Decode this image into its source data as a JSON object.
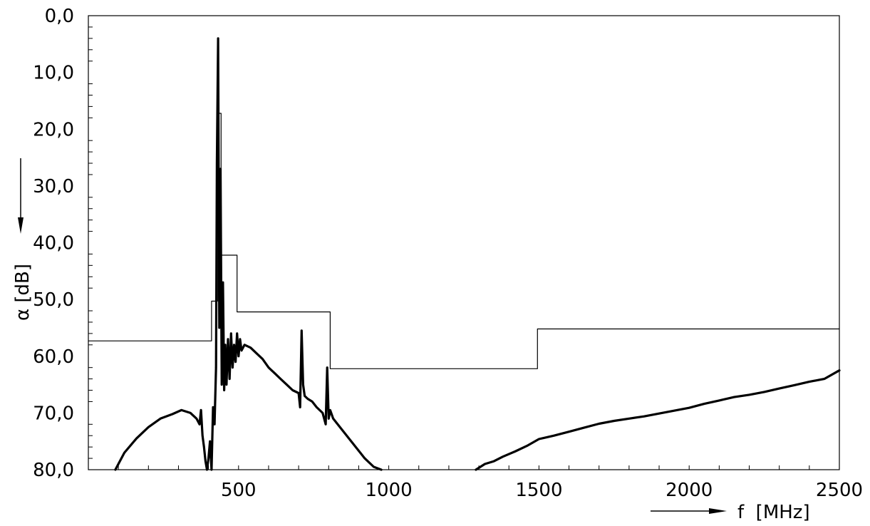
{
  "chart_data": {
    "type": "line",
    "title": "",
    "xlabel": "f  [MHz]",
    "ylabel": "α  [dB]",
    "xlim": [
      0,
      2500
    ],
    "ylim": [
      80,
      0
    ],
    "y_inverted": true,
    "grid": false,
    "x_ticks": [
      500,
      1000,
      1500,
      2000,
      2500
    ],
    "x_tick_labels": [
      "500",
      "1000",
      "1500",
      "2000",
      "2500"
    ],
    "y_ticks": [
      0,
      10,
      20,
      30,
      40,
      50,
      60,
      70,
      80
    ],
    "y_tick_labels": [
      "0,0",
      "10,0",
      "20,0",
      "30,0",
      "40,0",
      "50,0",
      "60,0",
      "70,0",
      "80,0"
    ],
    "colors": {
      "line": "#000000",
      "background": "#ffffff"
    },
    "series": [
      {
        "style": "thin-step",
        "x": [
          0,
          410,
          410,
          430,
          430,
          442,
          442,
          495,
          495,
          805,
          805,
          1495,
          1495,
          2500
        ],
        "y": [
          57.3,
          57.3,
          50.3,
          50.3,
          17.2,
          17.2,
          42.2,
          42.2,
          52.2,
          52.2,
          62.2,
          62.2,
          55.2,
          55.2
        ]
      },
      {
        "style": "thick-noisy",
        "x": [
          90,
          120,
          160,
          200,
          240,
          280,
          310,
          340,
          360,
          370,
          375,
          380,
          385,
          390,
          395,
          400,
          405,
          410,
          415,
          420,
          425,
          428,
          432,
          436,
          440,
          444,
          448,
          452,
          456,
          460,
          465,
          470,
          475,
          480,
          485,
          490,
          495,
          500,
          505,
          510,
          520,
          540,
          560,
          580,
          600,
          620,
          640,
          660,
          680,
          700,
          705,
          710,
          715,
          720,
          730,
          745,
          760,
          780,
          790,
          795,
          800,
          805,
          815,
          830,
          860,
          890,
          920,
          950,
          975
        ],
        "y": [
          80,
          77,
          74.5,
          72.5,
          71,
          70.2,
          69.5,
          70,
          71,
          72,
          69.5,
          74,
          76,
          78.5,
          80,
          78,
          75,
          80,
          69,
          72,
          62,
          26,
          4,
          55,
          27,
          65,
          47,
          66,
          58,
          65,
          57,
          64,
          56,
          62,
          58,
          61,
          56,
          60,
          57,
          59,
          58,
          58.5,
          59.5,
          60.5,
          62,
          63,
          64,
          65,
          66,
          66.5,
          69,
          55.5,
          65,
          67,
          67.5,
          68,
          69,
          70,
          72,
          62,
          71,
          69.5,
          71,
          72,
          74,
          76,
          78,
          79.5,
          80
        ]
      },
      {
        "style": "thick-noisy",
        "x": [
          1290,
          1320,
          1350,
          1380,
          1420,
          1460,
          1500,
          1550,
          1600,
          1650,
          1700,
          1750,
          1800,
          1850,
          1900,
          1950,
          2000,
          2050,
          2100,
          2150,
          2200,
          2250,
          2300,
          2350,
          2400,
          2450,
          2500
        ],
        "y": [
          80,
          79,
          78.5,
          77.7,
          76.8,
          75.8,
          74.6,
          74,
          73.3,
          72.6,
          71.9,
          71.4,
          71,
          70.6,
          70.1,
          69.6,
          69.1,
          68.4,
          67.8,
          67.2,
          66.8,
          66.3,
          65.7,
          65.1,
          64.5,
          64,
          62.5
        ]
      }
    ],
    "annotations": [
      "down-arrow-on-y-axis",
      "right-arrow-on-x-axis"
    ]
  }
}
